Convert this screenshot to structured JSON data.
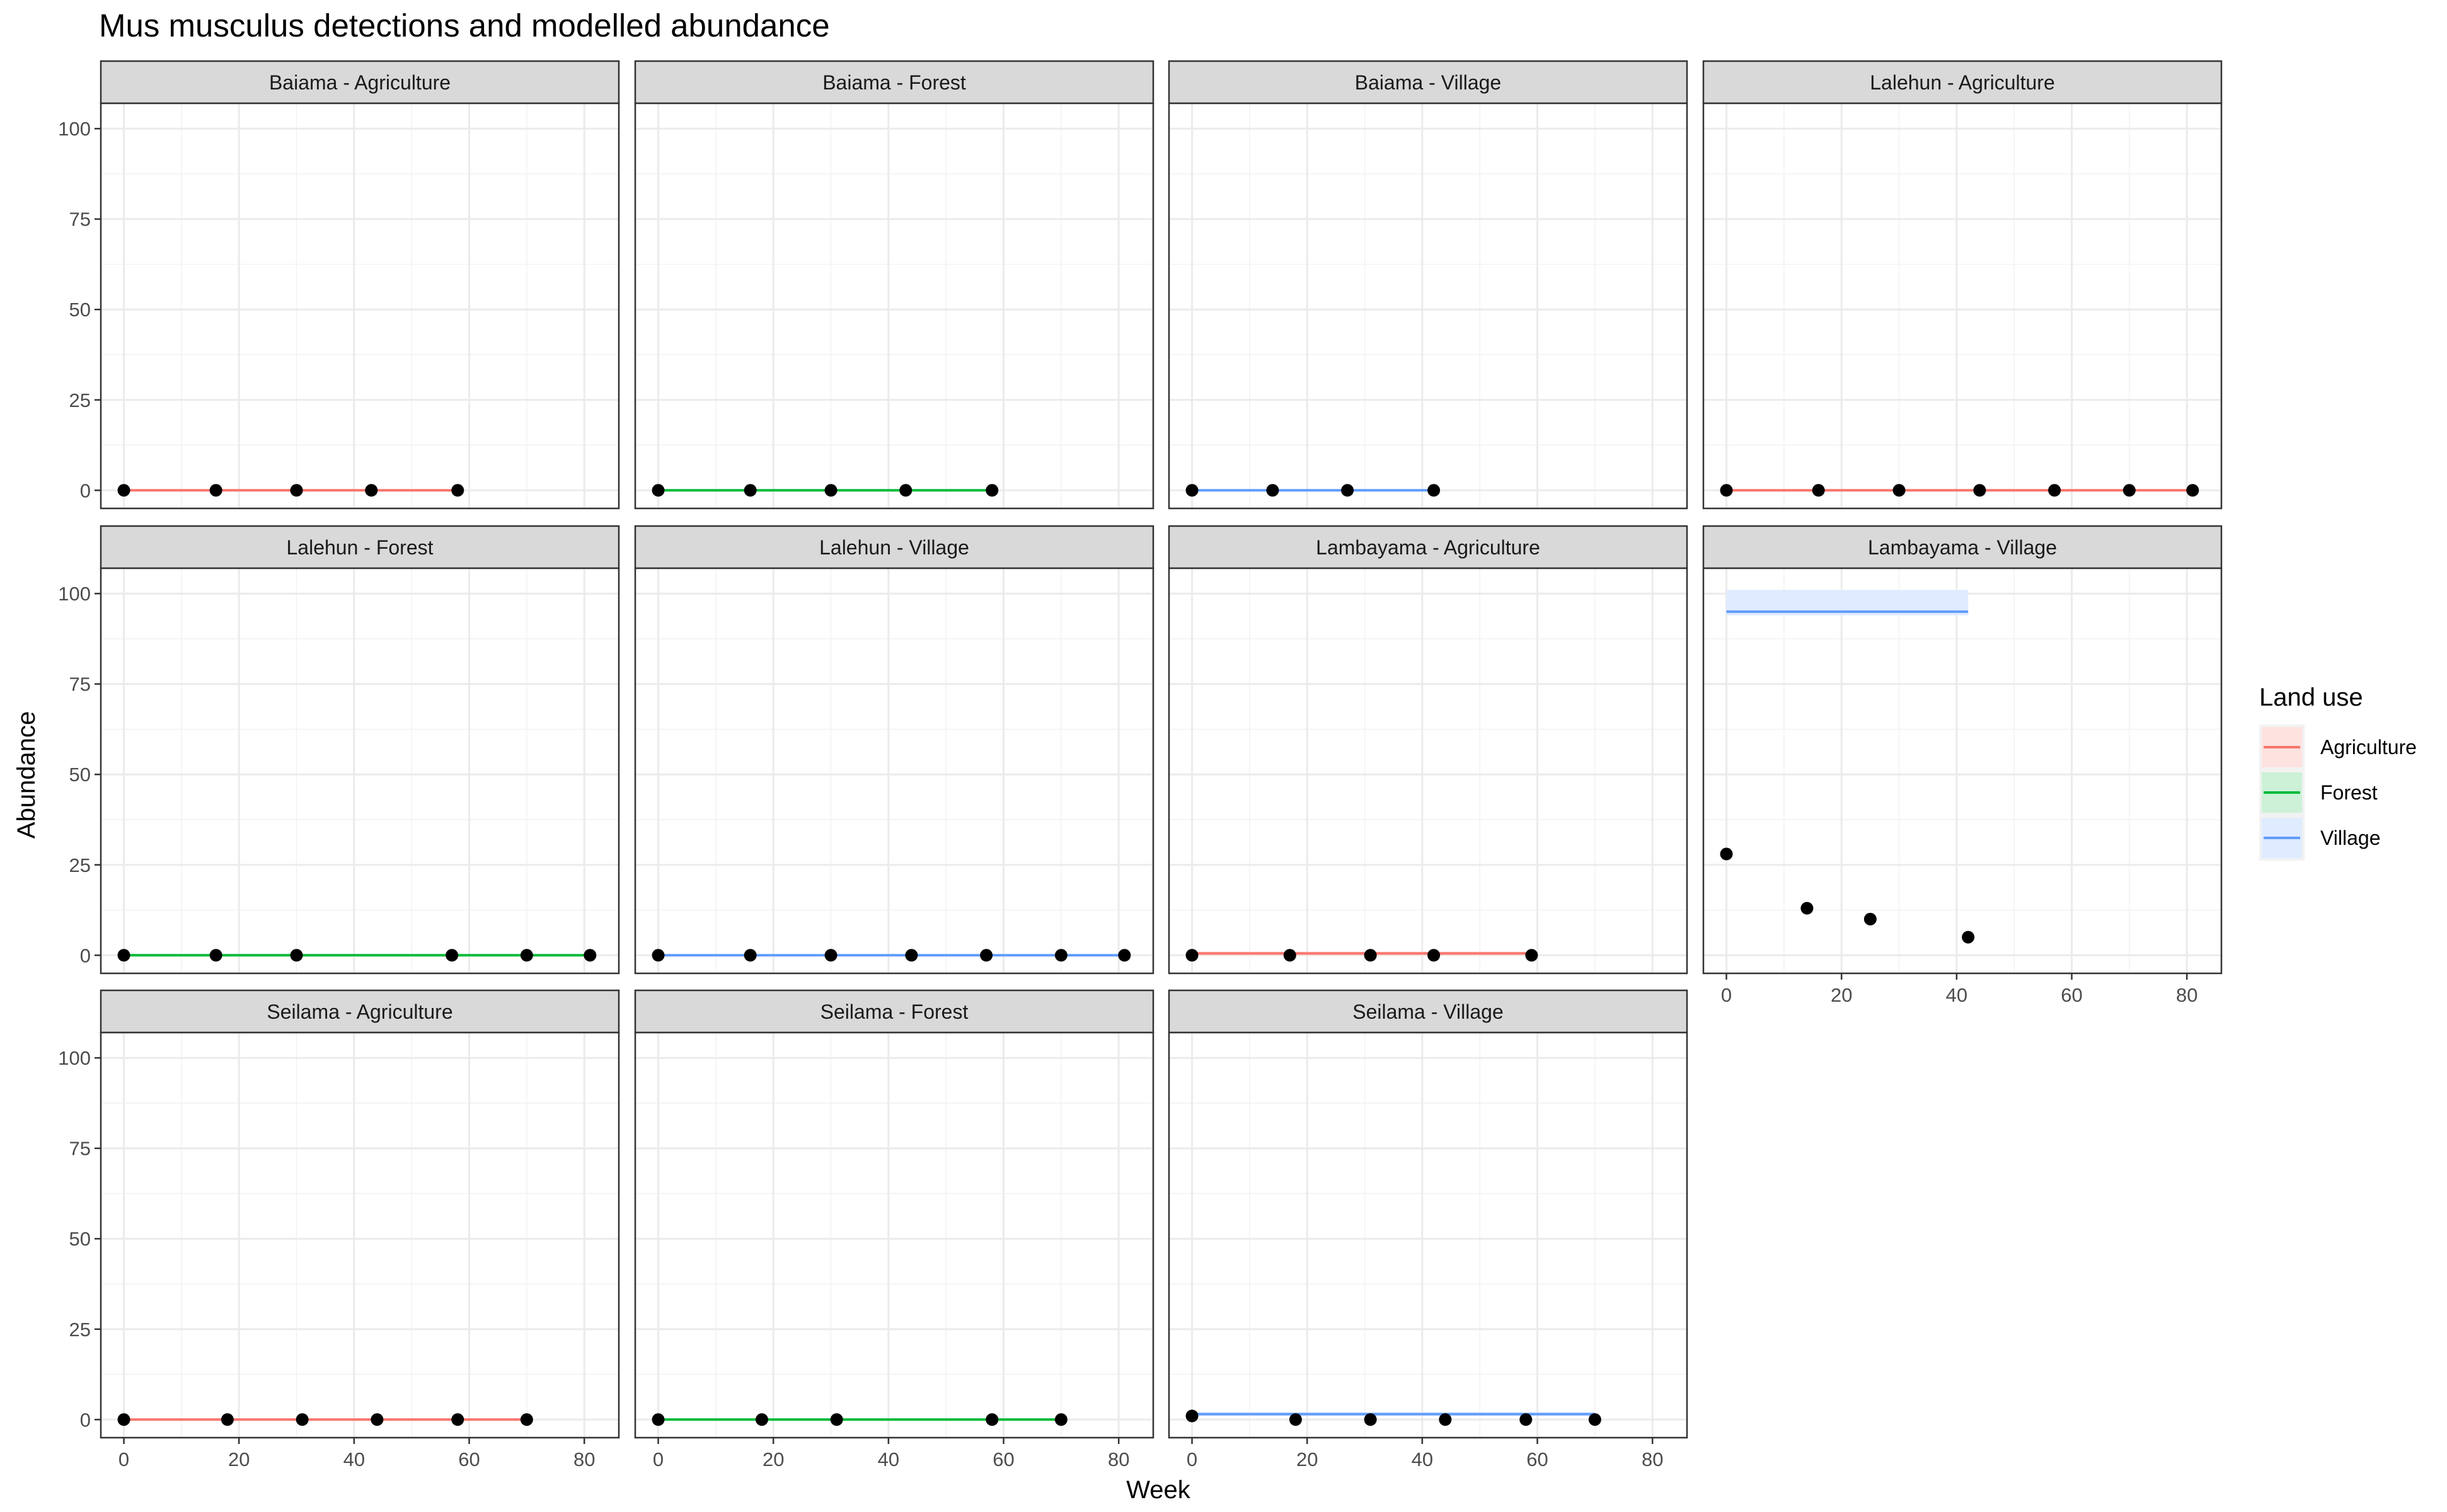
{
  "chart_data": {
    "type": "line",
    "title": "Mus musculus detections and modelled abundance",
    "xlabel": "Week",
    "ylabel": "Abundance",
    "xlim": [
      -4,
      86
    ],
    "ylim": [
      -5,
      107
    ],
    "x_ticks": [
      0,
      20,
      40,
      60,
      80
    ],
    "y_ticks": [
      0,
      25,
      50,
      75,
      100
    ],
    "grid": true,
    "legend": {
      "title": "Land use",
      "placement": "right",
      "entries": [
        {
          "name": "Agriculture",
          "color": "#F8766D",
          "fill": "#FDE2E0"
        },
        {
          "name": "Forest",
          "color": "#00BA38",
          "fill": "#CCF1D7"
        },
        {
          "name": "Village",
          "color": "#619CFF",
          "fill": "#DFEBFF"
        }
      ]
    },
    "point_color": "#000000",
    "panels": [
      {
        "label": "Baiama - Agriculture",
        "land_use": "Agriculture",
        "fit": {
          "x": [
            0,
            58
          ],
          "y": 0,
          "lower": 0,
          "upper": 0
        },
        "points": [
          [
            0,
            0
          ],
          [
            16,
            0
          ],
          [
            30,
            0
          ],
          [
            43,
            0
          ],
          [
            58,
            0
          ]
        ]
      },
      {
        "label": "Baiama - Forest",
        "land_use": "Forest",
        "fit": {
          "x": [
            0,
            58
          ],
          "y": 0,
          "lower": 0,
          "upper": 0
        },
        "points": [
          [
            0,
            0
          ],
          [
            16,
            0
          ],
          [
            30,
            0
          ],
          [
            43,
            0
          ],
          [
            58,
            0
          ]
        ]
      },
      {
        "label": "Baiama - Village",
        "land_use": "Village",
        "fit": {
          "x": [
            0,
            42
          ],
          "y": 0,
          "lower": 0,
          "upper": 0
        },
        "points": [
          [
            0,
            0
          ],
          [
            14,
            0
          ],
          [
            27,
            0
          ],
          [
            42,
            0
          ]
        ]
      },
      {
        "label": "Lalehun - Agriculture",
        "land_use": "Agriculture",
        "fit": {
          "x": [
            0,
            81
          ],
          "y": 0,
          "lower": 0,
          "upper": 0
        },
        "points": [
          [
            0,
            0
          ],
          [
            16,
            0
          ],
          [
            30,
            0
          ],
          [
            44,
            0
          ],
          [
            57,
            0
          ],
          [
            70,
            0
          ],
          [
            81,
            0
          ]
        ]
      },
      {
        "label": "Lalehun - Forest",
        "land_use": "Forest",
        "fit": {
          "x": [
            0,
            81
          ],
          "y": 0,
          "lower": 0,
          "upper": 0
        },
        "points": [
          [
            0,
            0
          ],
          [
            16,
            0
          ],
          [
            30,
            0
          ],
          [
            57,
            0
          ],
          [
            70,
            0
          ],
          [
            81,
            0
          ]
        ]
      },
      {
        "label": "Lalehun - Village",
        "land_use": "Village",
        "fit": {
          "x": [
            0,
            81
          ],
          "y": 0,
          "lower": 0,
          "upper": 0
        },
        "points": [
          [
            0,
            0
          ],
          [
            16,
            0
          ],
          [
            30,
            0
          ],
          [
            44,
            0
          ],
          [
            57,
            0
          ],
          [
            70,
            0
          ],
          [
            81,
            0
          ]
        ]
      },
      {
        "label": "Lambayama - Agriculture",
        "land_use": "Agriculture",
        "fit": {
          "x": [
            0,
            59
          ],
          "y": 0.5,
          "lower": 0,
          "upper": 1
        },
        "points": [
          [
            0,
            0
          ],
          [
            17,
            0
          ],
          [
            31,
            0
          ],
          [
            42,
            0
          ],
          [
            59,
            0
          ]
        ]
      },
      {
        "label": "Lambayama - Village",
        "land_use": "Village",
        "fit": {
          "x": [
            0,
            42
          ],
          "y": 95,
          "lower": 94,
          "upper": 101
        },
        "points": [
          [
            0,
            28
          ],
          [
            14,
            13
          ],
          [
            25,
            10
          ],
          [
            42,
            5
          ]
        ]
      },
      {
        "label": "Seilama - Agriculture",
        "land_use": "Agriculture",
        "fit": {
          "x": [
            0,
            70
          ],
          "y": 0,
          "lower": 0,
          "upper": 0
        },
        "points": [
          [
            0,
            0
          ],
          [
            18,
            0
          ],
          [
            31,
            0
          ],
          [
            44,
            0
          ],
          [
            58,
            0
          ],
          [
            70,
            0
          ]
        ]
      },
      {
        "label": "Seilama - Forest",
        "land_use": "Forest",
        "fit": {
          "x": [
            0,
            70
          ],
          "y": 0,
          "lower": 0,
          "upper": 0
        },
        "points": [
          [
            0,
            0
          ],
          [
            18,
            0
          ],
          [
            31,
            0
          ],
          [
            58,
            0
          ],
          [
            70,
            0
          ]
        ]
      },
      {
        "label": "Seilama - Village",
        "land_use": "Village",
        "fit": {
          "x": [
            0,
            70
          ],
          "y": 1.5,
          "lower": 1,
          "upper": 2
        },
        "points": [
          [
            0,
            1
          ],
          [
            18,
            0
          ],
          [
            31,
            0
          ],
          [
            44,
            0
          ],
          [
            58,
            0
          ],
          [
            70,
            0
          ]
        ]
      }
    ]
  }
}
